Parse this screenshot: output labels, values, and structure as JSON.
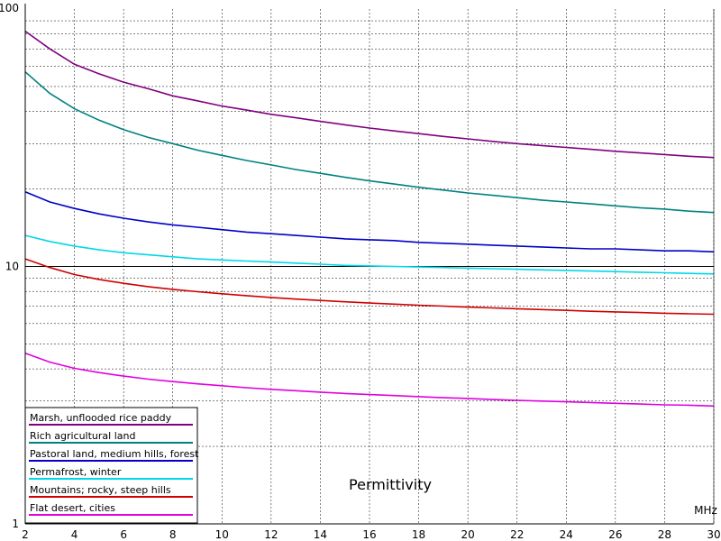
{
  "chart_data": {
    "type": "line",
    "title": "Permittivity",
    "xlabel": "MHz",
    "ylabel": "",
    "xlim": [
      2,
      30
    ],
    "ylim": [
      1,
      100
    ],
    "yscale": "log",
    "grid": true,
    "legend_position": "bottom-left",
    "x_tick_labels": [
      "2",
      "4",
      "6",
      "8",
      "10",
      "12",
      "14",
      "16",
      "18",
      "20",
      "22",
      "24",
      "26",
      "28",
      "30"
    ],
    "y_tick_labels": [
      "1",
      "10",
      "100"
    ],
    "x": [
      2,
      3,
      4,
      5,
      6,
      7,
      8,
      9,
      10,
      11,
      12,
      13,
      14,
      15,
      16,
      17,
      18,
      19,
      20,
      21,
      22,
      23,
      24,
      25,
      26,
      27,
      28,
      29,
      30
    ],
    "series": [
      {
        "name": "Marsh, unflooded rice paddy",
        "color": "#800080",
        "values": [
          82,
          70,
          61,
          56,
          52,
          49,
          46,
          44,
          42,
          40.5,
          39,
          37.8,
          36.6,
          35.5,
          34.5,
          33.6,
          32.8,
          32,
          31.3,
          30.6,
          30,
          29.5,
          29,
          28.5,
          28,
          27.6,
          27.2,
          26.8,
          26.5
        ]
      },
      {
        "name": "Rich agricultural land",
        "color": "#008080",
        "values": [
          57,
          47,
          41,
          37,
          34,
          31.7,
          30,
          28.3,
          27,
          25.8,
          24.8,
          23.8,
          23,
          22.2,
          21.5,
          20.9,
          20.3,
          19.8,
          19.3,
          18.9,
          18.5,
          18.1,
          17.8,
          17.5,
          17.2,
          16.9,
          16.7,
          16.4,
          16.2
        ]
      },
      {
        "name": "Pastoral land, medium hills, forest",
        "color": "#0000c8",
        "values": [
          19.5,
          17.8,
          16.8,
          16.0,
          15.4,
          14.9,
          14.5,
          14.2,
          13.9,
          13.6,
          13.4,
          13.2,
          13.0,
          12.8,
          12.7,
          12.6,
          12.4,
          12.3,
          12.2,
          12.1,
          12.0,
          11.9,
          11.8,
          11.7,
          11.7,
          11.6,
          11.5,
          11.5,
          11.4
        ]
      },
      {
        "name": "Permafrost, winter",
        "color": "#00d8e8",
        "values": [
          13.2,
          12.5,
          12.0,
          11.6,
          11.3,
          11.1,
          10.9,
          10.7,
          10.6,
          10.5,
          10.4,
          10.3,
          10.2,
          10.1,
          10.05,
          10.0,
          9.95,
          9.9,
          9.85,
          9.8,
          9.75,
          9.7,
          9.65,
          9.6,
          9.55,
          9.5,
          9.45,
          9.4,
          9.35
        ]
      },
      {
        "name": "Mountains; rocky, steep hills",
        "color": "#d00000",
        "values": [
          10.7,
          9.9,
          9.3,
          8.9,
          8.6,
          8.35,
          8.15,
          7.98,
          7.83,
          7.7,
          7.58,
          7.47,
          7.38,
          7.29,
          7.21,
          7.14,
          7.07,
          7.01,
          6.95,
          6.9,
          6.85,
          6.8,
          6.75,
          6.7,
          6.66,
          6.62,
          6.58,
          6.55,
          6.52
        ]
      },
      {
        "name": "Flat desert, cities",
        "color": "#e000e0",
        "values": [
          4.6,
          4.25,
          4.02,
          3.87,
          3.75,
          3.65,
          3.57,
          3.5,
          3.44,
          3.38,
          3.33,
          3.29,
          3.25,
          3.21,
          3.18,
          3.15,
          3.12,
          3.09,
          3.07,
          3.04,
          3.02,
          3.0,
          2.98,
          2.96,
          2.94,
          2.92,
          2.9,
          2.89,
          2.87
        ]
      }
    ]
  }
}
